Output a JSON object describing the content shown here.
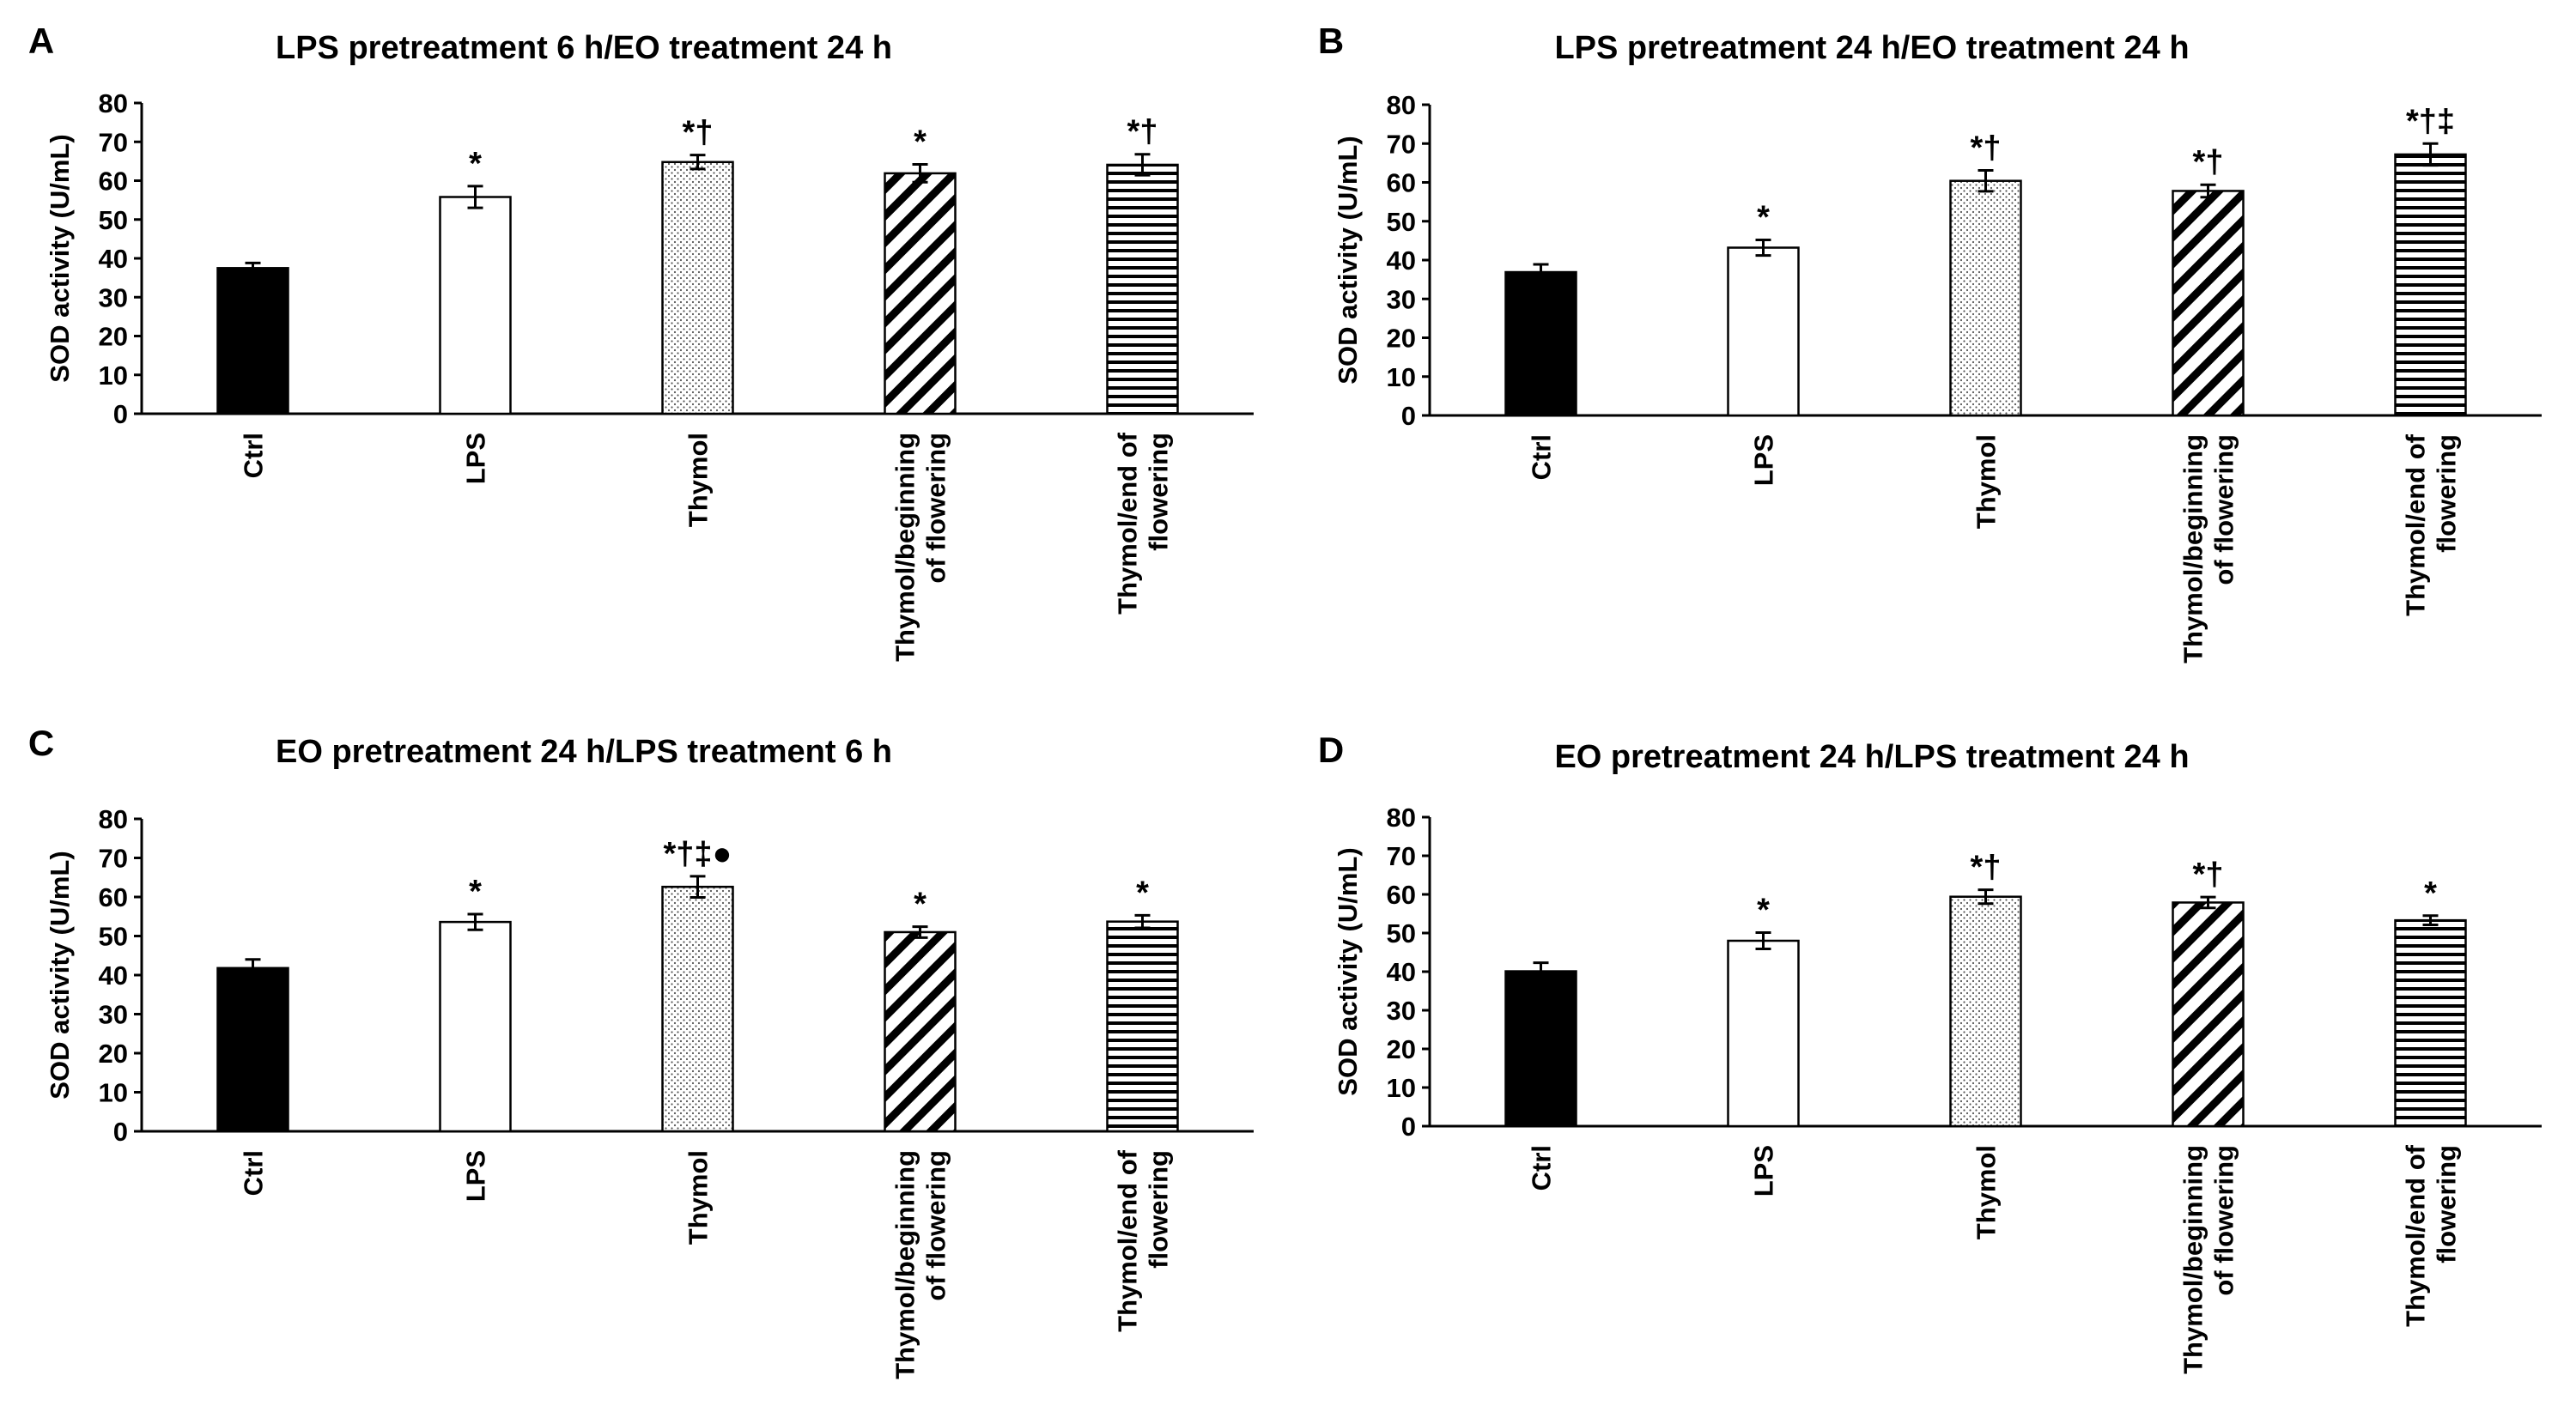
{
  "chart_data": [
    {
      "panel": "A",
      "type": "bar",
      "title": "LPS pretreatment 6 h/EO treatment 24 h",
      "ylabel": "SOD activity (U/mL)",
      "xlabel": "",
      "ylim": [
        0,
        80
      ],
      "yticks": [
        0,
        10,
        20,
        30,
        40,
        50,
        60,
        70,
        80
      ],
      "categories": [
        [
          "Ctrl"
        ],
        [
          "LPS"
        ],
        [
          "Thymol"
        ],
        [
          "Thymol/beginning",
          "of flowering"
        ],
        [
          "Thymol/end of",
          "flowering"
        ]
      ],
      "values": [
        37.5,
        55.8,
        64.8,
        61.9,
        64.1
      ],
      "errors": [
        1.3,
        2.8,
        1.8,
        2.3,
        2.7
      ],
      "significance": [
        "",
        "*",
        "*†",
        "*",
        "*†"
      ],
      "patterns": [
        "solid",
        "empty",
        "dots",
        "diagonal",
        "horizontal"
      ]
    },
    {
      "panel": "B",
      "type": "bar",
      "title": "LPS pretreatment 24 h/EO treatment 24 h",
      "ylabel": "SOD activity (U/mL)",
      "xlabel": "",
      "ylim": [
        0,
        80
      ],
      "yticks": [
        0,
        10,
        20,
        30,
        40,
        50,
        60,
        70,
        80
      ],
      "categories": [
        [
          "Ctrl"
        ],
        [
          "LPS"
        ],
        [
          "Thymol"
        ],
        [
          "Thymol/beginning",
          "of flowering"
        ],
        [
          "Thymol/end of",
          "flowering"
        ]
      ],
      "values": [
        36.9,
        43.2,
        60.4,
        57.8,
        67.2
      ],
      "errors": [
        2.0,
        2.0,
        2.7,
        1.6,
        2.8
      ],
      "significance": [
        "",
        "*",
        "*†",
        "*†",
        "*†‡"
      ],
      "patterns": [
        "solid",
        "empty",
        "dots",
        "diagonal",
        "horizontal"
      ]
    },
    {
      "panel": "C",
      "type": "bar",
      "title": "EO pretreatment 24 h/LPS treatment 6 h",
      "ylabel": "SOD activity (U/mL)",
      "xlabel": "",
      "ylim": [
        0,
        80
      ],
      "yticks": [
        0,
        10,
        20,
        30,
        40,
        50,
        60,
        70,
        80
      ],
      "categories": [
        [
          "Ctrl"
        ],
        [
          "LPS"
        ],
        [
          "Thymol"
        ],
        [
          "Thymol/beginning",
          "of flowering"
        ],
        [
          "Thymol/end of",
          "flowering"
        ]
      ],
      "values": [
        41.8,
        53.6,
        62.6,
        51.0,
        53.7
      ],
      "errors": [
        2.2,
        2.0,
        2.7,
        1.4,
        1.6
      ],
      "significance": [
        "",
        "*",
        "*†‡●",
        "*",
        "*"
      ],
      "patterns": [
        "solid",
        "empty",
        "dots",
        "diagonal",
        "horizontal"
      ]
    },
    {
      "panel": "D",
      "type": "bar",
      "title": "EO pretreatment 24 h/LPS treatment 24 h",
      "ylabel": "SOD activity (U/mL)",
      "xlabel": "",
      "ylim": [
        0,
        80
      ],
      "yticks": [
        0,
        10,
        20,
        30,
        40,
        50,
        60,
        70,
        80
      ],
      "categories": [
        [
          "Ctrl"
        ],
        [
          "LPS"
        ],
        [
          "Thymol"
        ],
        [
          "Thymol/beginning",
          "of flowering"
        ],
        [
          "Thymol/end of",
          "flowering"
        ]
      ],
      "values": [
        40.1,
        48.0,
        59.4,
        57.9,
        53.3
      ],
      "errors": [
        2.2,
        2.1,
        1.8,
        1.4,
        1.2
      ],
      "significance": [
        "",
        "*",
        "*†",
        "*†",
        "*"
      ],
      "patterns": [
        "solid",
        "empty",
        "dots",
        "diagonal",
        "horizontal"
      ]
    }
  ]
}
